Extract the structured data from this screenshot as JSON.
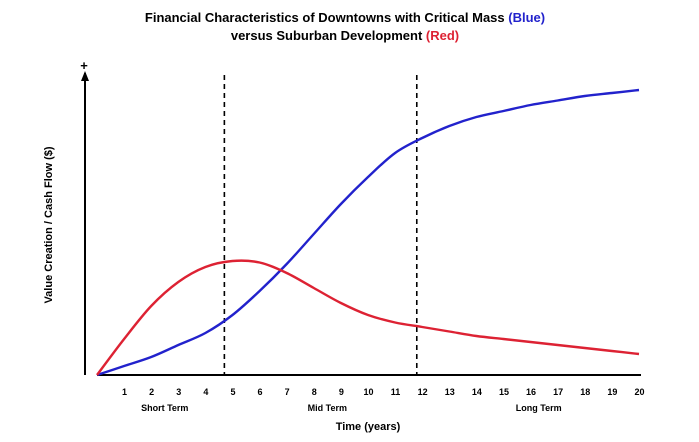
{
  "chart_data": {
    "type": "line",
    "title_line1": "Financial Characteristics of Downtowns with Critical Mass",
    "title_blue_tag": "(Blue)",
    "title_line2": "versus Suburban Development",
    "title_red_tag": "(Red)",
    "xlabel": "Time (years)",
    "ylabel": "Value Creation / Cash Flow ($)",
    "y_axis_marker": "+",
    "xlim": [
      0,
      20
    ],
    "ylim": [
      0,
      100
    ],
    "x_ticks": [
      1,
      2,
      3,
      4,
      5,
      6,
      7,
      8,
      9,
      10,
      11,
      12,
      13,
      14,
      15,
      16,
      17,
      18,
      19,
      20
    ],
    "phases": [
      {
        "label": "Short Term",
        "at": 2.5
      },
      {
        "label": "Mid Term",
        "at": 8.5
      },
      {
        "label": "Long Term",
        "at": 16.3
      }
    ],
    "dividers_x": [
      4.7,
      11.8
    ],
    "grid": false,
    "series": [
      {
        "color": "#2222cc",
        "x": [
          0,
          1,
          2,
          3,
          4,
          5,
          6,
          7,
          8,
          9,
          10,
          11,
          12,
          13,
          14,
          15,
          16,
          17,
          18,
          19,
          20
        ],
        "y": [
          0,
          3,
          6,
          10,
          14,
          20,
          28,
          37,
          47,
          57,
          66,
          74,
          79,
          83,
          86,
          88,
          90,
          91.5,
          93,
          94,
          95
        ]
      },
      {
        "color": "#dd2233",
        "x": [
          0,
          1,
          2,
          3,
          4,
          5,
          6,
          7,
          8,
          9,
          10,
          11,
          12,
          13,
          14,
          15,
          16,
          17,
          18,
          19,
          20
        ],
        "y": [
          0,
          12,
          23,
          31,
          36,
          38,
          37.5,
          34,
          29,
          24,
          20,
          17.5,
          16,
          14.5,
          13,
          12,
          11,
          10,
          9,
          8,
          7
        ]
      }
    ],
    "colors": {
      "blue_tag": "#2222cc",
      "red_tag": "#dd2233",
      "axis": "#000000"
    }
  }
}
